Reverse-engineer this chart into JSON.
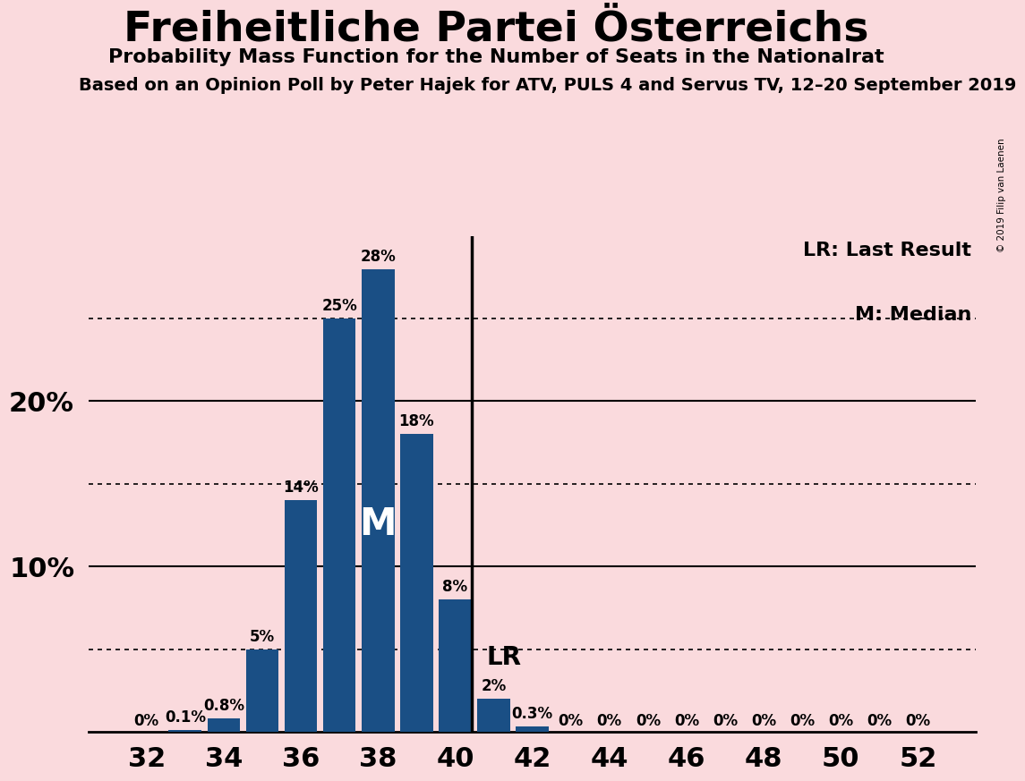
{
  "title": "Freiheitliche Partei Österreichs",
  "subtitle": "Probability Mass Function for the Number of Seats in the Nationalrat",
  "subtitle2": "Based on an Opinion Poll by Peter Hajek for ATV, PULS 4 and Servus TV, 12–20 September 2019",
  "copyright": "© 2019 Filip van Laenen",
  "seats": [
    32,
    33,
    34,
    35,
    36,
    37,
    38,
    39,
    40,
    41,
    42,
    43,
    44,
    45,
    46,
    47,
    48,
    49,
    50,
    51,
    52
  ],
  "probabilities": [
    0.0,
    0.001,
    0.008,
    0.05,
    0.14,
    0.25,
    0.28,
    0.18,
    0.08,
    0.02,
    0.003,
    0.0,
    0.0,
    0.0,
    0.0,
    0.0,
    0.0,
    0.0,
    0.0,
    0.0,
    0.0
  ],
  "labels": [
    "0%",
    "0.1%",
    "0.8%",
    "5%",
    "14%",
    "25%",
    "28%",
    "18%",
    "8%",
    "2%",
    "0.3%",
    "0%",
    "0%",
    "0%",
    "0%",
    "0%",
    "0%",
    "0%",
    "0%",
    "0%",
    "0%"
  ],
  "bar_color": "#1a4f85",
  "background_color": "#fadadd",
  "median_seat": 38,
  "last_result_seat": 40,
  "solid_yticks": [
    0.1,
    0.2
  ],
  "dotted_yticks": [
    0.05,
    0.15,
    0.25
  ],
  "xtick_positions": [
    32,
    34,
    36,
    38,
    40,
    42,
    44,
    46,
    48,
    50,
    52
  ],
  "ylim": [
    0,
    0.3
  ],
  "label_fontsize": 12,
  "tick_fontsize": 22
}
